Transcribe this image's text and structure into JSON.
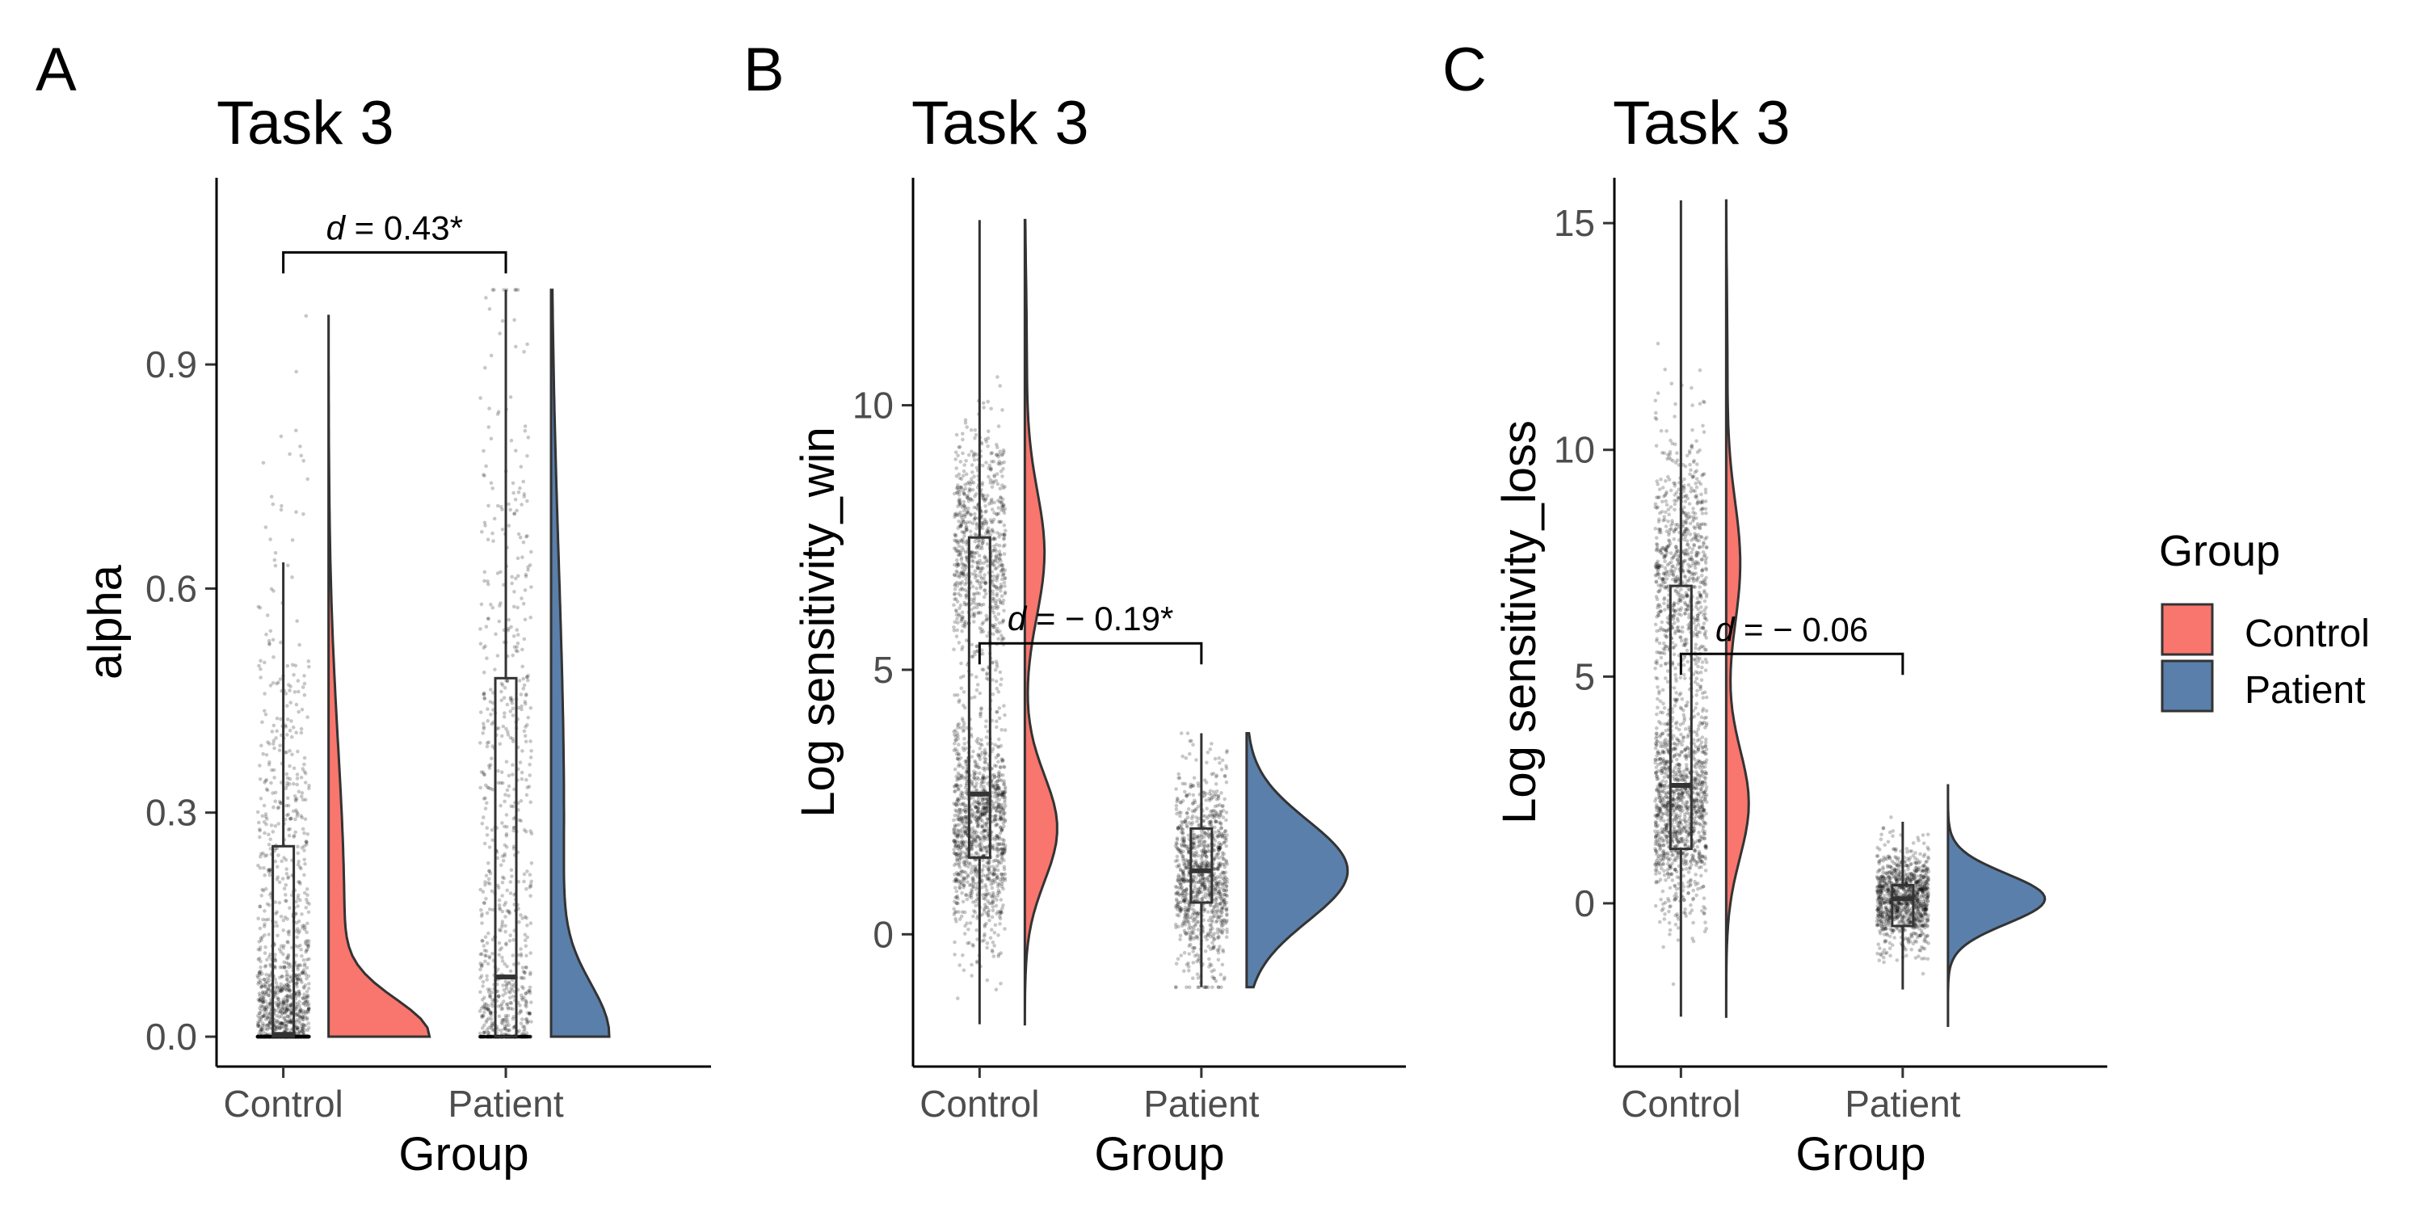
{
  "figure": {
    "legend": {
      "title": "Group",
      "entries": [
        {
          "label": "Control",
          "color": "#F8766D"
        },
        {
          "label": "Patient",
          "color": "#5A7FAA"
        }
      ]
    }
  },
  "chart_data": [
    {
      "type": "raincloud",
      "panel_label": "A",
      "title": "Task 3",
      "xlabel": "Group",
      "ylabel": "alpha",
      "categories": [
        "Control",
        "Patient"
      ],
      "ylim": [
        -0.04,
        1.15
      ],
      "yticks": [
        0.0,
        0.3,
        0.6,
        0.9
      ],
      "ytick_labels": [
        "0.0",
        "0.3",
        "0.6",
        "0.9"
      ],
      "series": [
        {
          "name": "Control",
          "color": "#F8766D",
          "box": {
            "min": 0.0,
            "q1": 0.0,
            "median": 0.003,
            "q3": 0.255,
            "max": 0.635
          },
          "range": [
            0.0,
            0.965
          ]
        },
        {
          "name": "Patient",
          "color": "#5A7FAA",
          "box": {
            "min": 0.0,
            "q1": 0.0,
            "median": 0.08,
            "q3": 0.48,
            "max": 1.0
          },
          "range": [
            0.0,
            1.0
          ]
        }
      ],
      "annotation": {
        "text": "0.43*",
        "prefix": "d",
        "bracket_y": 1.05
      }
    },
    {
      "type": "raincloud",
      "panel_label": "B",
      "title": "Task 3",
      "xlabel": "Group",
      "ylabel": "Log sensitivity_win",
      "categories": [
        "Control",
        "Patient"
      ],
      "ylim": [
        -2.5,
        14.3
      ],
      "yticks": [
        0,
        5,
        10
      ],
      "ytick_labels": [
        "0",
        "5",
        "10"
      ],
      "series": [
        {
          "name": "Control",
          "color": "#F8766D",
          "box": {
            "min": -1.7,
            "q1": 1.45,
            "median": 2.65,
            "q3": 7.5,
            "max": 13.5
          },
          "range": [
            -1.7,
            13.5
          ]
        },
        {
          "name": "Patient",
          "color": "#5A7FAA",
          "box": {
            "min": -1.0,
            "q1": 0.6,
            "median": 1.2,
            "q3": 2.0,
            "max": 3.8
          },
          "range": [
            -1.0,
            3.8
          ]
        }
      ],
      "annotation": {
        "text": "= − 0.19*",
        "prefix": "d",
        "bracket_y": 5.5
      }
    },
    {
      "type": "raincloud",
      "panel_label": "C",
      "title": "Task 3",
      "xlabel": "Group",
      "ylabel": "Log sensitivity_loss",
      "categories": [
        "Control",
        "Patient"
      ],
      "ylim": [
        -3.6,
        16.0
      ],
      "yticks": [
        0,
        5,
        10,
        15
      ],
      "ytick_labels": [
        "0",
        "5",
        "10",
        "15"
      ],
      "series": [
        {
          "name": "Control",
          "color": "#F8766D",
          "box": {
            "min": -2.5,
            "q1": 1.2,
            "median": 2.6,
            "q3": 7.0,
            "max": 15.5
          },
          "range": [
            -2.5,
            15.5
          ]
        },
        {
          "name": "Patient",
          "color": "#5A7FAA",
          "box": {
            "min": -1.9,
            "q1": -0.5,
            "median": 0.1,
            "q3": 0.4,
            "max": 1.8
          },
          "range": [
            -2.7,
            2.6
          ]
        }
      ],
      "annotation": {
        "text": "= − 0.06",
        "prefix": "d",
        "bracket_y": 5.5
      }
    }
  ]
}
